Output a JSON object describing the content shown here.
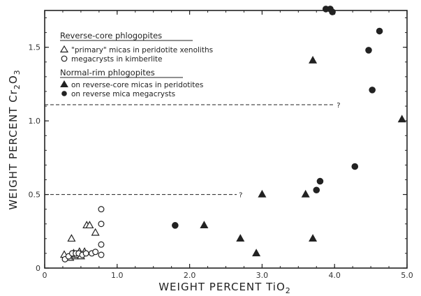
{
  "chart_data": {
    "type": "scatter",
    "x_axis": {
      "label_main": "WEIGHT PERCENT TiO",
      "label_sub": "2",
      "range": [
        0,
        5.0
      ],
      "ticks": [
        0,
        1.0,
        2.0,
        3.0,
        4.0,
        5.0
      ],
      "tick_labels": [
        "0",
        "1.0",
        "2.0",
        "3.0",
        "4.0",
        "5.0"
      ]
    },
    "y_axis": {
      "label_main": "WEIGHT PERCENT Cr",
      "label_sub1": "2",
      "label_mid": "O",
      "label_sub2": "3",
      "range": [
        0,
        1.75
      ],
      "ticks": [
        0,
        0.5,
        1.0,
        1.5
      ],
      "tick_labels": [
        "0",
        "0.5",
        "1.0",
        "1.5"
      ]
    },
    "legend": {
      "groups": [
        {
          "heading": "Reverse-core phlogopites",
          "entries": [
            {
              "marker": "open-triangle",
              "label": "\"primary\" micas in peridotite xenoliths"
            },
            {
              "marker": "open-circle",
              "label": "megacrysts in kimberlite"
            }
          ]
        },
        {
          "heading": "Normal-rim phlogopites",
          "entries": [
            {
              "marker": "filled-triangle",
              "label": "on reverse-core micas in peridotites"
            },
            {
              "marker": "filled-circle",
              "label": "on reverse mica megacrysts"
            }
          ]
        }
      ]
    },
    "reference_lines": [
      {
        "y": 1.11,
        "x_start": 0,
        "x_end": 4.0,
        "style": "dashed",
        "label": "?"
      },
      {
        "y": 0.5,
        "x_start": 0,
        "x_end": 2.65,
        "style": "dashed",
        "label": "?"
      }
    ],
    "series": [
      {
        "name": "\"primary\" micas in peridotite xenoliths",
        "marker": "open-triangle",
        "points": [
          [
            0.27,
            0.09
          ],
          [
            0.35,
            0.07
          ],
          [
            0.37,
            0.2
          ],
          [
            0.4,
            0.1
          ],
          [
            0.42,
            0.08
          ],
          [
            0.45,
            0.09
          ],
          [
            0.48,
            0.11
          ],
          [
            0.5,
            0.08
          ],
          [
            0.55,
            0.11
          ],
          [
            0.58,
            0.29
          ],
          [
            0.62,
            0.29
          ],
          [
            0.7,
            0.24
          ]
        ]
      },
      {
        "name": "megacrysts in kimberlite",
        "marker": "open-circle",
        "points": [
          [
            0.28,
            0.06
          ],
          [
            0.33,
            0.08
          ],
          [
            0.38,
            0.1
          ],
          [
            0.43,
            0.1
          ],
          [
            0.47,
            0.1
          ],
          [
            0.52,
            0.09
          ],
          [
            0.57,
            0.1
          ],
          [
            0.65,
            0.1
          ],
          [
            0.7,
            0.11
          ],
          [
            0.78,
            0.09
          ],
          [
            0.78,
            0.16
          ],
          [
            0.78,
            0.3
          ],
          [
            0.78,
            0.4
          ]
        ]
      },
      {
        "name": "on reverse-core micas in peridotites",
        "marker": "filled-triangle",
        "points": [
          [
            2.2,
            0.29
          ],
          [
            2.7,
            0.2
          ],
          [
            2.92,
            0.1
          ],
          [
            3.0,
            0.5
          ],
          [
            3.6,
            0.5
          ],
          [
            3.7,
            1.41
          ],
          [
            3.7,
            0.2
          ],
          [
            4.93,
            1.01
          ]
        ]
      },
      {
        "name": "on reverse mica megacrysts",
        "marker": "filled-circle",
        "points": [
          [
            1.8,
            0.29
          ],
          [
            3.75,
            0.53
          ],
          [
            3.8,
            0.59
          ],
          [
            3.88,
            1.76
          ],
          [
            3.94,
            1.76
          ],
          [
            3.97,
            1.74
          ],
          [
            4.28,
            0.69
          ],
          [
            4.47,
            1.48
          ],
          [
            4.52,
            1.21
          ],
          [
            4.62,
            1.61
          ]
        ]
      }
    ]
  }
}
